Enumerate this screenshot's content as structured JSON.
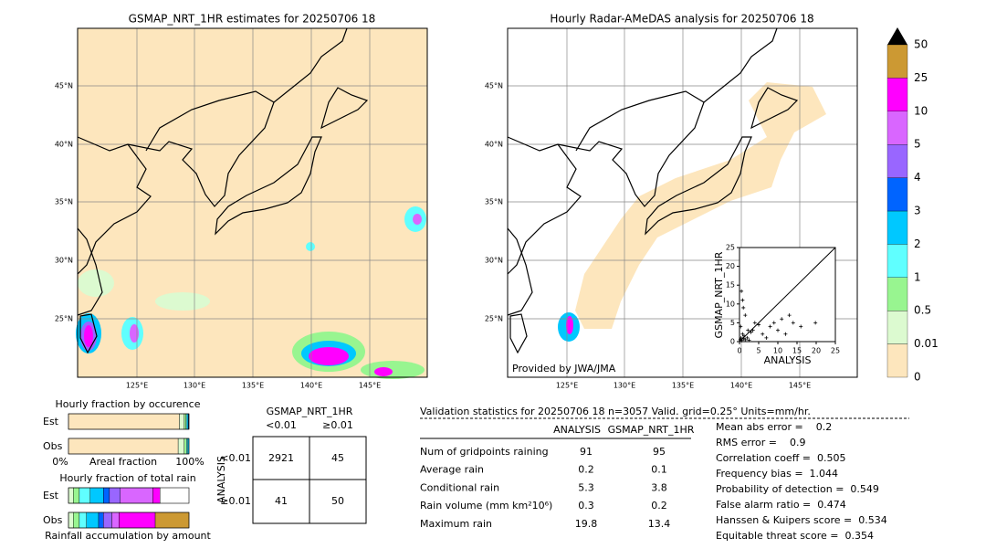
{
  "left_map": {
    "title": "GSMAP_NRT_1HR estimates for 20250706 18",
    "lat_labels": [
      "45°N",
      "40°N",
      "35°N",
      "30°N",
      "25°N"
    ],
    "lon_labels": [
      "125°E",
      "130°E",
      "135°E",
      "140°E",
      "145°E"
    ]
  },
  "right_map": {
    "title": "Hourly Radar-AMeDAS analysis for 20250706 18",
    "lat_labels": [
      "45°N",
      "40°N",
      "35°N",
      "30°N",
      "25°N"
    ],
    "lon_labels": [
      "125°E",
      "130°E",
      "135°E",
      "140°E",
      "145°E"
    ],
    "credit": "Provided by JWA/JMA"
  },
  "colorbar": {
    "levels": [
      "0",
      "0.01",
      "0.5",
      "1",
      "2",
      "3",
      "4",
      "5",
      "10",
      "25",
      "50"
    ],
    "colors": [
      "#fde6bd",
      "#dcfad0",
      "#98f590",
      "#60ffff",
      "#00c8ff",
      "#0064ff",
      "#9966ff",
      "#d966ff",
      "#ff00ff",
      "#cc9933"
    ]
  },
  "scatter": {
    "type": "scatter",
    "x_label": "ANALYSIS",
    "y_label": "GSMAP_NRT_1HR",
    "xlim": [
      0,
      25
    ],
    "ylim": [
      0,
      25
    ],
    "xticks": [
      0,
      5,
      10,
      15,
      20,
      25
    ],
    "yticks": [
      0,
      5,
      10,
      15,
      20,
      25
    ],
    "x": [
      0.2,
      0.4,
      0.6,
      0.8,
      1,
      1.2,
      1.5,
      2,
      2.5,
      3,
      0.5,
      0.8,
      1,
      1.5,
      3.5,
      4,
      5,
      6,
      7,
      8,
      9,
      10,
      11,
      12,
      13,
      14,
      16,
      19.8,
      0.3,
      2.2
    ],
    "y": [
      0.5,
      1,
      0.3,
      2,
      0.8,
      1.5,
      0.5,
      1,
      0.4,
      2.5,
      13.4,
      11,
      9,
      7,
      3,
      5,
      4.5,
      2,
      1,
      4,
      5,
      3,
      6,
      2,
      7,
      5,
      4,
      5,
      4,
      3
    ]
  },
  "occurrence": {
    "title": "Hourly fraction by occurence",
    "rows": [
      "Est",
      "Obs"
    ],
    "axis_left": "0%",
    "axis_mid": "Areal fraction",
    "axis_right": "100%",
    "est": [
      92,
      4,
      1.5,
      1,
      1,
      0.5
    ],
    "obs": [
      91,
      5,
      2,
      1,
      1
    ]
  },
  "total_rain": {
    "title": "Hourly fraction of total rain",
    "rows": [
      "Est",
      "Obs"
    ],
    "footer": "Rainfall accumulation by amount",
    "est": [
      4,
      5,
      9,
      11,
      5,
      9,
      27,
      6
    ],
    "obs": [
      4,
      5,
      6,
      10,
      4,
      7,
      6,
      30,
      28
    ]
  },
  "contingency": {
    "title": "GSMAP_NRT_1HR",
    "col_headers": [
      "<0.01",
      "≥0.01"
    ],
    "row_axis": "ANALYSIS",
    "row_headers": [
      "<0.01",
      "≥0.01"
    ],
    "cells": [
      [
        "2921",
        "45"
      ],
      [
        "41",
        "50"
      ]
    ]
  },
  "validation": {
    "header": "Validation statistics for 20250706 18  n=3057 Valid. grid=0.25° Units=mm/hr.",
    "columns": [
      "ANALYSIS",
      "GSMAP_NRT_1HR"
    ],
    "rows": [
      [
        "Num of gridpoints raining",
        "91",
        "95"
      ],
      [
        "Average rain",
        "0.2",
        "0.1"
      ],
      [
        "Conditional rain",
        "5.3",
        "3.8"
      ],
      [
        "Rain volume (mm km²10⁶)",
        "0.3",
        "0.2"
      ],
      [
        "Maximum rain",
        "19.8",
        "13.4"
      ]
    ],
    "scores": [
      "Mean abs error =    0.2",
      "RMS error =    0.9",
      "Correlation coeff =  0.505",
      "Frequency bias =  1.044",
      "Probability of detection =  0.549",
      "False alarm ratio =  0.474",
      "Hanssen & Kuipers score =  0.534",
      "Equitable threat score =  0.354"
    ]
  }
}
